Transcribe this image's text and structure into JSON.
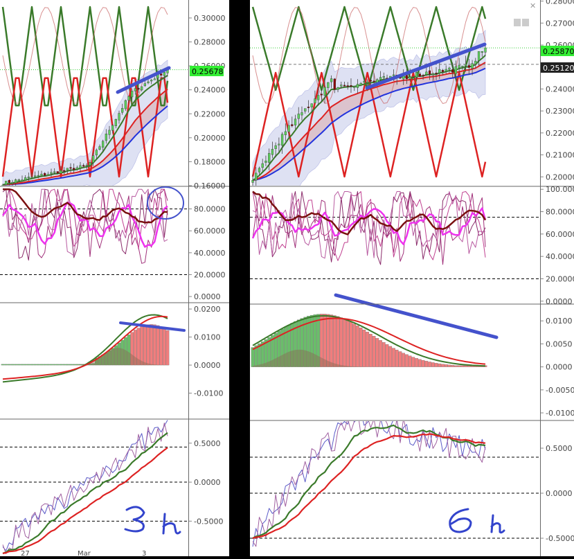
{
  "colors": {
    "up_candle": "#5ed25e",
    "down_candle": "#8b0000",
    "green_line": "#3a7a2a",
    "red_line": "#dd2222",
    "blue_line": "#2233dd",
    "band_fill": "#b8bde6",
    "magenta": "#ee33ee",
    "trendline": "#4452cc",
    "price_tag": "#33ee33"
  },
  "chart_data": [
    {
      "type": "candlestick",
      "panel": "left-price",
      "timeframe_note": "3 h",
      "price_tag": "0.25678",
      "yticks": [
        "0.30000",
        "0.28000",
        "0.26000",
        "0.24000",
        "0.22000",
        "0.20000",
        "0.18000",
        "0.16000"
      ],
      "ylim": [
        0.16,
        0.315
      ],
      "close_start": 0.162,
      "close_end": 0.2568,
      "xlabels": [
        "27",
        "Mar",
        "3"
      ]
    },
    {
      "type": "line",
      "panel": "left-oscillator",
      "yticks": [
        "80.0000",
        "60.0000",
        "40.0000",
        "20.0000",
        "0.0000"
      ],
      "ylim": [
        -5,
        100
      ],
      "hlines": [
        80,
        20
      ]
    },
    {
      "type": "bar",
      "panel": "left-histogram",
      "yticks": [
        "0.0200",
        "0.0100",
        "0.0000",
        "-0.0100"
      ],
      "ylim": [
        -0.019,
        0.022
      ],
      "hist_peak": 0.0145,
      "line_peak": 0.0185
    },
    {
      "type": "line",
      "panel": "left-momentum",
      "yticks": [
        "0.5000",
        "0.0000",
        "-0.5000"
      ],
      "ylim": [
        -0.95,
        0.8
      ],
      "hlines": [
        0.45,
        0.0,
        -0.5
      ]
    },
    {
      "type": "candlestick",
      "panel": "right-price",
      "timeframe_note": "6 h",
      "price_tag": "0.25870",
      "price_tag_2": "0.25120",
      "yticks": [
        "0.28000",
        "0.27000",
        "0.26000",
        "0.25000",
        "0.24000",
        "0.23000",
        "0.22000",
        "0.21000",
        "0.20000"
      ],
      "ylim": [
        0.196,
        0.2805
      ],
      "close_start": 0.197,
      "close_end": 0.2587
    },
    {
      "type": "line",
      "panel": "right-oscillator",
      "yticks": [
        "100.0000",
        "80.0000",
        "60.0000",
        "40.0000",
        "20.0000",
        "0.0000"
      ],
      "ylim": [
        -2,
        102
      ],
      "hlines": [
        75,
        20
      ]
    },
    {
      "type": "bar",
      "panel": "right-histogram",
      "yticks": [
        "0.0100",
        "0.0050",
        "0.0000",
        "-0.0050",
        "-0.0100"
      ],
      "ylim": [
        -0.0115,
        0.0135
      ],
      "hist_peak": 0.0115,
      "line_peak": 0.0118
    },
    {
      "type": "line",
      "panel": "right-momentum",
      "yticks": [
        "0.5000",
        "0.0000",
        "-0.5000"
      ],
      "ylim": [
        -0.7,
        0.8
      ],
      "hlines": [
        0.4,
        0.0,
        -0.5
      ]
    }
  ]
}
